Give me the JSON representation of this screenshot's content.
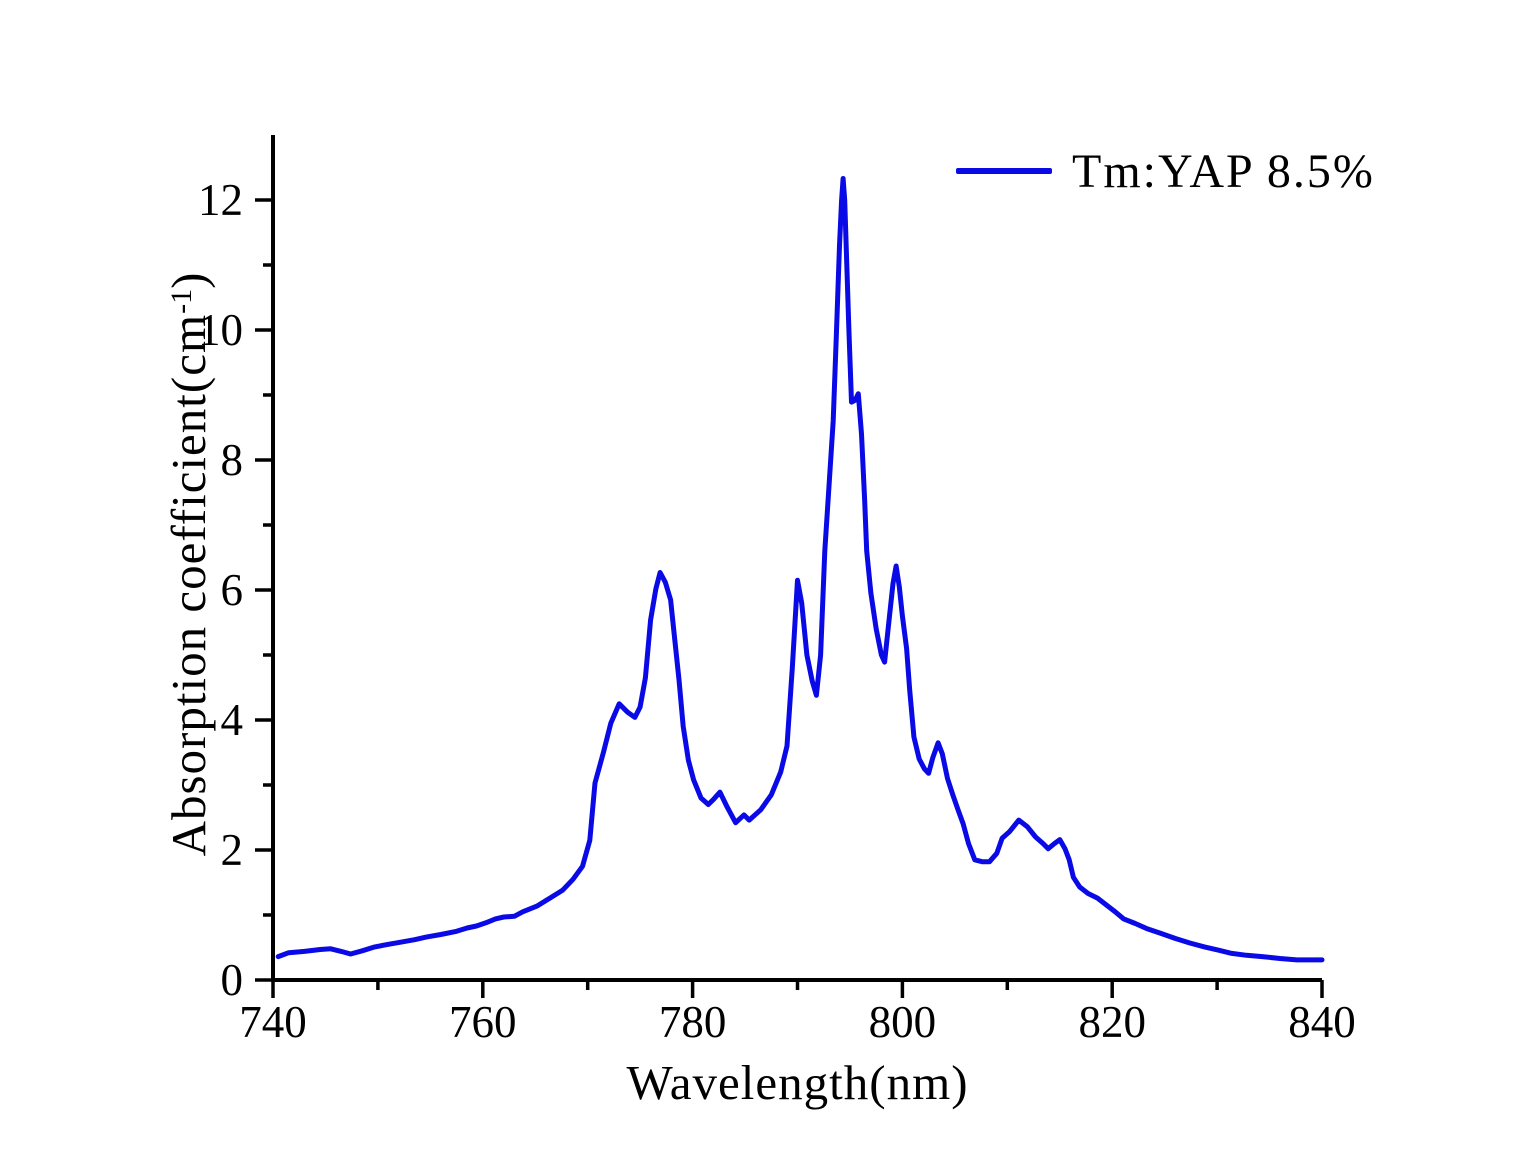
{
  "figure": {
    "background": "#ffffff",
    "axis_color": "#000000"
  },
  "chart_data": {
    "type": "line",
    "title": "",
    "xlabel": "Wavelength(nm)",
    "ylabel_main": "Absorption coefficient(cm",
    "ylabel_sup": "-1",
    "ylabel_end": ")",
    "xlim": [
      740,
      840
    ],
    "ylim": [
      0,
      13
    ],
    "x_major_ticks": [
      740,
      760,
      780,
      800,
      820,
      840
    ],
    "x_minor_ticks": [
      750,
      770,
      790,
      810,
      830
    ],
    "y_major_ticks": [
      0,
      2,
      4,
      6,
      8,
      10,
      12
    ],
    "y_minor_ticks": [
      1,
      3,
      5,
      7,
      9,
      11
    ],
    "grid": "off",
    "legend": {
      "position": "top-right",
      "entries": [
        {
          "label": "Tm:YAP 8.5%",
          "color": "#0a0ae6"
        }
      ]
    },
    "series": [
      {
        "name": "Tm:YAP 8.5%",
        "color": "#0a0ae6",
        "line_width": 5,
        "points": [
          [
            740.5,
            0.36
          ],
          [
            741.5,
            0.42
          ],
          [
            743.0,
            0.44
          ],
          [
            744.5,
            0.47
          ],
          [
            745.5,
            0.48
          ],
          [
            746.5,
            0.44
          ],
          [
            747.4,
            0.4
          ],
          [
            748.5,
            0.45
          ],
          [
            749.7,
            0.51
          ],
          [
            751.0,
            0.55
          ],
          [
            752.1,
            0.58
          ],
          [
            753.5,
            0.62
          ],
          [
            754.6,
            0.66
          ],
          [
            756.0,
            0.7
          ],
          [
            757.5,
            0.75
          ],
          [
            758.5,
            0.8
          ],
          [
            759.4,
            0.83
          ],
          [
            760.3,
            0.88
          ],
          [
            761.2,
            0.94
          ],
          [
            762.0,
            0.97
          ],
          [
            763.0,
            0.98
          ],
          [
            763.8,
            1.05
          ],
          [
            765.2,
            1.14
          ],
          [
            766.4,
            1.26
          ],
          [
            767.6,
            1.38
          ],
          [
            768.6,
            1.55
          ],
          [
            769.5,
            1.75
          ],
          [
            770.2,
            2.15
          ],
          [
            770.7,
            3.03
          ],
          [
            771.5,
            3.5
          ],
          [
            772.2,
            3.95
          ],
          [
            773.0,
            4.25
          ],
          [
            773.8,
            4.12
          ],
          [
            774.5,
            4.04
          ],
          [
            775.0,
            4.2
          ],
          [
            775.5,
            4.65
          ],
          [
            776.0,
            5.54
          ],
          [
            776.5,
            6.02
          ],
          [
            776.9,
            6.27
          ],
          [
            777.4,
            6.12
          ],
          [
            777.9,
            5.85
          ],
          [
            778.3,
            5.23
          ],
          [
            778.7,
            4.62
          ],
          [
            779.1,
            3.9
          ],
          [
            779.6,
            3.38
          ],
          [
            780.1,
            3.08
          ],
          [
            780.8,
            2.8
          ],
          [
            781.5,
            2.7
          ],
          [
            782.0,
            2.78
          ],
          [
            782.6,
            2.89
          ],
          [
            783.3,
            2.66
          ],
          [
            784.1,
            2.42
          ],
          [
            784.9,
            2.54
          ],
          [
            785.4,
            2.46
          ],
          [
            786.5,
            2.62
          ],
          [
            787.5,
            2.85
          ],
          [
            788.4,
            3.2
          ],
          [
            789.0,
            3.6
          ],
          [
            789.5,
            4.8
          ],
          [
            790.0,
            6.15
          ],
          [
            790.4,
            5.8
          ],
          [
            790.9,
            5.0
          ],
          [
            791.4,
            4.6
          ],
          [
            791.8,
            4.38
          ],
          [
            792.2,
            5.0
          ],
          [
            792.6,
            6.6
          ],
          [
            793.0,
            7.6
          ],
          [
            793.4,
            8.6
          ],
          [
            793.7,
            9.9
          ],
          [
            794.0,
            11.3
          ],
          [
            794.2,
            12.0
          ],
          [
            794.35,
            12.33
          ],
          [
            794.5,
            12.0
          ],
          [
            794.7,
            11.0
          ],
          [
            794.9,
            10.0
          ],
          [
            795.15,
            8.89
          ],
          [
            795.5,
            8.92
          ],
          [
            795.8,
            9.02
          ],
          [
            796.1,
            8.4
          ],
          [
            796.4,
            7.4
          ],
          [
            796.6,
            6.6
          ],
          [
            797.0,
            5.95
          ],
          [
            797.5,
            5.4
          ],
          [
            798.0,
            5.0
          ],
          [
            798.3,
            4.89
          ],
          [
            798.7,
            5.5
          ],
          [
            799.1,
            6.1
          ],
          [
            799.4,
            6.37
          ],
          [
            799.7,
            6.05
          ],
          [
            800.0,
            5.6
          ],
          [
            800.4,
            5.1
          ],
          [
            800.7,
            4.46
          ],
          [
            801.1,
            3.74
          ],
          [
            801.6,
            3.4
          ],
          [
            802.1,
            3.25
          ],
          [
            802.5,
            3.18
          ],
          [
            802.9,
            3.42
          ],
          [
            803.4,
            3.65
          ],
          [
            803.8,
            3.48
          ],
          [
            804.3,
            3.1
          ],
          [
            804.8,
            2.85
          ],
          [
            805.3,
            2.62
          ],
          [
            805.8,
            2.4
          ],
          [
            806.3,
            2.1
          ],
          [
            806.9,
            1.85
          ],
          [
            807.6,
            1.82
          ],
          [
            808.3,
            1.82
          ],
          [
            809.0,
            1.95
          ],
          [
            809.5,
            2.18
          ],
          [
            810.2,
            2.28
          ],
          [
            811.1,
            2.46
          ],
          [
            811.9,
            2.36
          ],
          [
            812.7,
            2.2
          ],
          [
            813.4,
            2.1
          ],
          [
            813.9,
            2.02
          ],
          [
            814.5,
            2.1
          ],
          [
            815.0,
            2.16
          ],
          [
            815.5,
            2.02
          ],
          [
            815.9,
            1.85
          ],
          [
            816.3,
            1.58
          ],
          [
            816.9,
            1.43
          ],
          [
            817.7,
            1.33
          ],
          [
            818.6,
            1.26
          ],
          [
            819.4,
            1.16
          ],
          [
            820.2,
            1.06
          ],
          [
            821.1,
            0.94
          ],
          [
            822.2,
            0.87
          ],
          [
            823.3,
            0.79
          ],
          [
            824.6,
            0.72
          ],
          [
            826.0,
            0.64
          ],
          [
            827.4,
            0.57
          ],
          [
            828.8,
            0.51
          ],
          [
            830.1,
            0.46
          ],
          [
            831.4,
            0.41
          ],
          [
            832.8,
            0.38
          ],
          [
            834.3,
            0.36
          ],
          [
            836.0,
            0.33
          ],
          [
            837.6,
            0.31
          ],
          [
            839.0,
            0.31
          ],
          [
            840.0,
            0.31
          ]
        ]
      }
    ]
  }
}
